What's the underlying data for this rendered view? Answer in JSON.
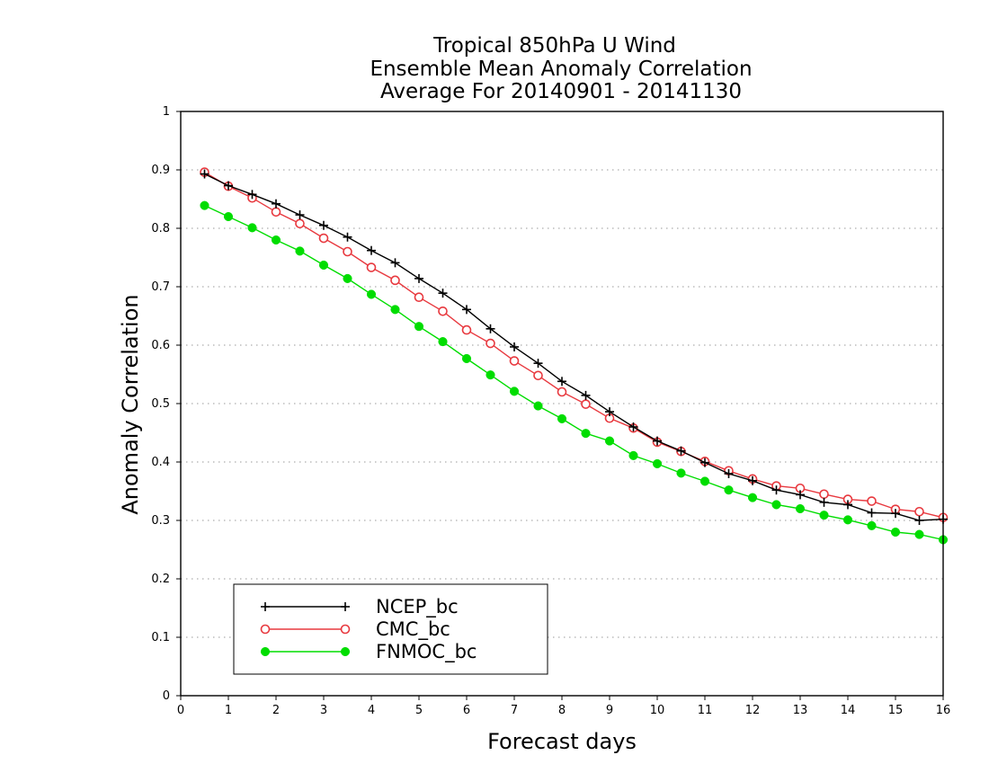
{
  "chart_data": {
    "type": "line",
    "title": [
      "Tropical 850hPa U Wind",
      "Ensemble Mean Anomaly Correlation",
      "Average For 20140901 - 20141130"
    ],
    "xlabel": "Forecast days",
    "ylabel": "Anomaly Correlation",
    "xlim": [
      0,
      16
    ],
    "ylim": [
      0,
      1
    ],
    "xticks": [
      "0",
      "1",
      "2",
      "3",
      "4",
      "5",
      "6",
      "7",
      "8",
      "9",
      "10",
      "11",
      "12",
      "13",
      "14",
      "15",
      "16"
    ],
    "yticks": [
      "0",
      "0.1",
      "0.2",
      "0.3",
      "0.4",
      "0.5",
      "0.6",
      "0.7",
      "0.8",
      "0.9",
      "1"
    ],
    "grid": "horizontal dotted",
    "legend_position": "bottom-left",
    "x": [
      0.5,
      1,
      1.5,
      2,
      2.5,
      3,
      3.5,
      4,
      4.5,
      5,
      5.5,
      6,
      6.5,
      7,
      7.5,
      8,
      8.5,
      9,
      9.5,
      10,
      10.5,
      11,
      11.5,
      12,
      12.5,
      13,
      13.5,
      14,
      14.5,
      15,
      15.5,
      16
    ],
    "series": [
      {
        "name": "NCEP_bc",
        "color": "#000000",
        "marker": "plus",
        "values": [
          0.893,
          0.873,
          0.858,
          0.842,
          0.823,
          0.805,
          0.785,
          0.762,
          0.741,
          0.714,
          0.689,
          0.661,
          0.628,
          0.597,
          0.569,
          0.538,
          0.514,
          0.486,
          0.46,
          0.436,
          0.419,
          0.399,
          0.38,
          0.368,
          0.352,
          0.344,
          0.331,
          0.327,
          0.313,
          0.312,
          0.3,
          0.302
        ]
      },
      {
        "name": "CMC_bc",
        "color": "#e8393f",
        "marker": "open-circle",
        "values": [
          0.896,
          0.872,
          0.852,
          0.828,
          0.808,
          0.783,
          0.76,
          0.733,
          0.711,
          0.682,
          0.658,
          0.626,
          0.603,
          0.573,
          0.548,
          0.52,
          0.499,
          0.475,
          0.458,
          0.434,
          0.418,
          0.401,
          0.385,
          0.371,
          0.359,
          0.355,
          0.345,
          0.336,
          0.333,
          0.319,
          0.315,
          0.305
        ]
      },
      {
        "name": "FNMOC_bc",
        "color": "#00dd00",
        "marker": "filled-circle",
        "values": [
          0.839,
          0.82,
          0.801,
          0.78,
          0.761,
          0.737,
          0.714,
          0.687,
          0.661,
          0.632,
          0.606,
          0.577,
          0.549,
          0.521,
          0.496,
          0.474,
          0.449,
          0.436,
          0.411,
          0.397,
          0.381,
          0.367,
          0.352,
          0.339,
          0.327,
          0.32,
          0.309,
          0.301,
          0.291,
          0.28,
          0.276,
          0.267
        ]
      }
    ]
  }
}
